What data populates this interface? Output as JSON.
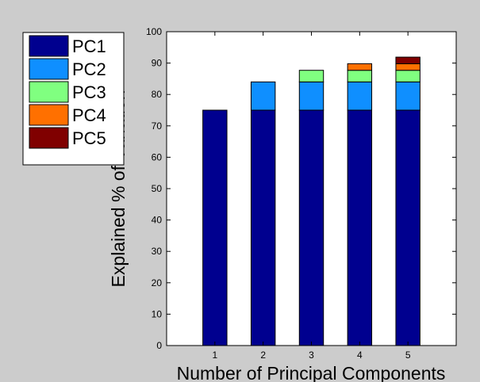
{
  "chart_data": {
    "type": "bar",
    "stacked": true,
    "title": "",
    "xlabel": "Number of Principal Components",
    "ylabel": "Explained % of Variation",
    "categories": [
      "1",
      "2",
      "3",
      "4",
      "5"
    ],
    "ylim": [
      0,
      100
    ],
    "yticks": [
      0,
      10,
      20,
      30,
      40,
      50,
      60,
      70,
      80,
      90,
      100
    ],
    "grid": false,
    "legend_position": "top-left (outside plot)",
    "series": [
      {
        "name": "PC1",
        "color": "#00008f",
        "values": [
          75,
          75,
          75,
          75,
          75
        ]
      },
      {
        "name": "PC2",
        "color": "#0f8fff",
        "values": [
          0,
          9,
          9,
          9,
          9
        ]
      },
      {
        "name": "PC3",
        "color": "#80ff80",
        "values": [
          0,
          0,
          3.7,
          3.7,
          3.7
        ]
      },
      {
        "name": "PC4",
        "color": "#ff7000",
        "values": [
          0,
          0,
          0,
          2.1,
          2.1
        ]
      },
      {
        "name": "PC5",
        "color": "#800000",
        "values": [
          0,
          0,
          0,
          0,
          2.1
        ]
      }
    ]
  }
}
